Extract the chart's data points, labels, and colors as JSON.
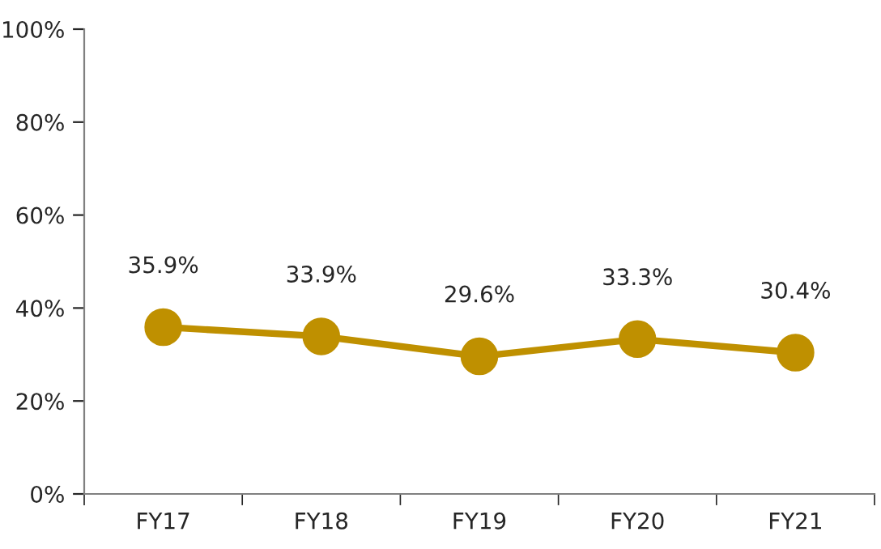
{
  "chart_data": {
    "type": "line",
    "categories": [
      "FY17",
      "FY18",
      "FY19",
      "FY20",
      "FY21"
    ],
    "series": [
      {
        "color": "#bf9000",
        "values": [
          35.9,
          33.9,
          29.6,
          33.3,
          30.4
        ],
        "value_labels": [
          "35.9%",
          "33.9%",
          "29.6%",
          "33.3%",
          "30.4%"
        ]
      }
    ],
    "ylim": [
      0,
      100
    ],
    "yticks": [
      {
        "value": 0,
        "label": "0%"
      },
      {
        "value": 20,
        "label": "20%"
      },
      {
        "value": 40,
        "label": "40%"
      },
      {
        "value": 60,
        "label": "60%"
      },
      {
        "value": 80,
        "label": "80%"
      },
      {
        "value": 100,
        "label": "100%"
      }
    ],
    "grid": false,
    "marker": "circle",
    "line_style": "solid"
  }
}
